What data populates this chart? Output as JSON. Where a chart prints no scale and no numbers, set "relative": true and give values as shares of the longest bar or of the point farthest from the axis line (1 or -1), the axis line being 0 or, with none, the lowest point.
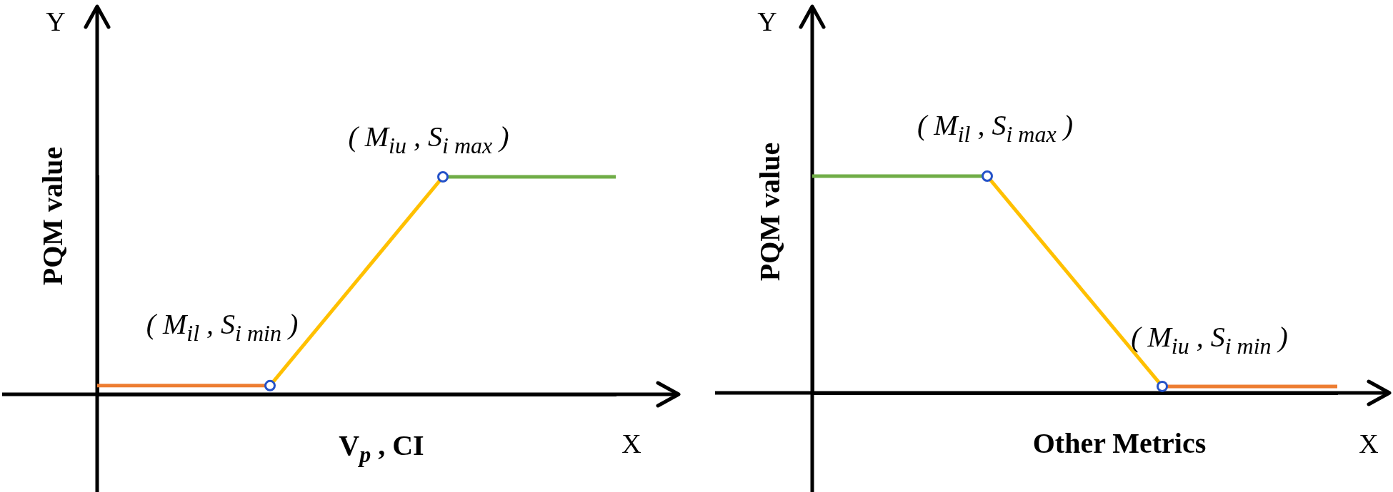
{
  "chart_data": [
    {
      "type": "line",
      "relative": true,
      "ylabel": "PQM value",
      "xlabel": "V$_{p}$ , CI",
      "categories": [
        null,
        null,
        null,
        null
      ],
      "series": [
        {
          "color": "#ed7d31",
          "values": [
            0.04,
            0.04,
            null,
            null
          ]
        },
        {
          "color": "#ffc000",
          "marker": "circle",
          "colors": [
            null,
            "#2452c8",
            "#2452c8",
            null
          ],
          "values": [
            null,
            0.04,
            1,
            null
          ]
        },
        {
          "color": "#70ad47",
          "values": [
            null,
            null,
            1,
            1
          ]
        }
      ],
      "annotations": [
        "( M$_{il}$ , S$_{i min}$ )",
        "( M$_{iu}$ , S$_{i max}$ )",
        "Y",
        "X"
      ]
    },
    {
      "type": "line",
      "relative": true,
      "ylabel": "PQM value",
      "xlabel": "Other Metrics",
      "categories": [
        null,
        null,
        null,
        null
      ],
      "series": [
        {
          "color": "#70ad47",
          "values": [
            1,
            1,
            null,
            null
          ]
        },
        {
          "color": "#ffc000",
          "marker": "circle",
          "colors": [
            null,
            "#2452c8",
            "#2452c8",
            null
          ],
          "values": [
            null,
            1,
            0.03,
            null
          ]
        },
        {
          "color": "#ed7d31",
          "values": [
            null,
            null,
            0.03,
            0.03
          ]
        }
      ],
      "annotations": [
        "( M$_{il}$ , S$_{i max}$ )",
        "( M$_{iu}$ , S$_{i min}$ )",
        "Y",
        "X"
      ]
    }
  ]
}
